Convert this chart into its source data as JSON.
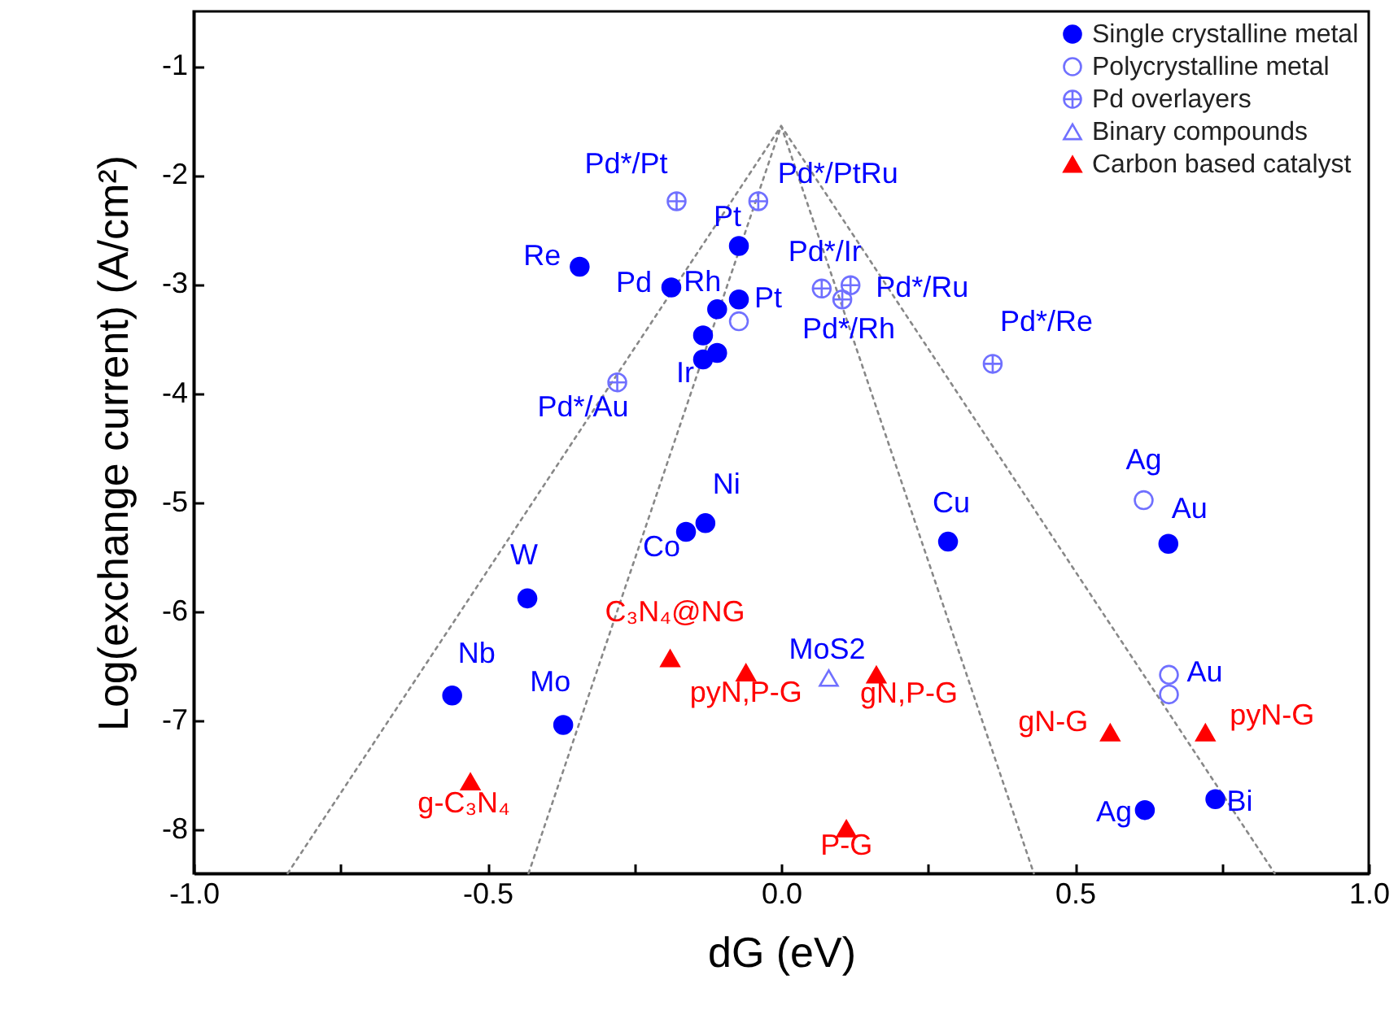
{
  "chart_data": {
    "type": "scatter",
    "xlabel": "dG (eV)",
    "ylabel": "Log(exchange current) (A/cm²)",
    "xlim": [
      -1.0,
      1.0
    ],
    "ylim": [
      -8.4,
      -0.5
    ],
    "xticks": [
      {
        "value": -1,
        "label": "-1.0"
      },
      {
        "value": -0.75,
        "label": null
      },
      {
        "value": -0.5,
        "label": "-0.5"
      },
      {
        "value": -0.25,
        "label": null
      },
      {
        "value": 0,
        "label": "0.0"
      },
      {
        "value": 0.25,
        "label": null
      },
      {
        "value": 0.5,
        "label": "0.5"
      },
      {
        "value": 0.75,
        "label": null
      },
      {
        "value": 1,
        "label": "1.0"
      }
    ],
    "yticks": [
      -1,
      -2,
      -3,
      -4,
      -5,
      -6,
      -7,
      -8
    ],
    "grid": false,
    "legend": "top right",
    "series": [
      {
        "name": "Single crystalline metal",
        "marker": "circle",
        "color": "#0000ff",
        "x": [
          -0.072,
          -0.343,
          -0.187,
          -0.109,
          -0.072,
          -0.133,
          -0.109,
          -0.133,
          -0.129,
          -0.162,
          -0.432,
          -0.56,
          -0.371,
          0.284,
          0.659,
          0.739,
          0.619
        ],
        "values": [
          -2.65,
          -2.84,
          -3.03,
          -3.23,
          -3.14,
          -3.47,
          -3.63,
          -3.69,
          -5.19,
          -5.27,
          -5.88,
          -6.77,
          -7.04,
          -5.36,
          -5.38,
          -7.72,
          -7.82
        ],
        "value_labels": [
          "Pt",
          "Re",
          "Pd",
          "Rh",
          "Pt",
          null,
          null,
          "Ir",
          "Ni",
          "Co",
          "W",
          "Nb",
          "Mo",
          "Cu",
          "Au",
          "Bi",
          "Ag"
        ]
      },
      {
        "name": "Polycrystalline metal",
        "marker": "circle",
        "color": "#7070ff",
        "x": [
          -0.072,
          0.617,
          0.66,
          0.66
        ],
        "values": [
          -3.34,
          -4.98,
          -6.58,
          -6.76
        ],
        "value_labels": [
          null,
          "Ag",
          "Au",
          null
        ]
      },
      {
        "name": "Pd overlayers",
        "marker": "cross",
        "color": "#7070ff",
        "x": [
          -0.178,
          -0.039,
          0.069,
          0.118,
          0.104,
          0.36,
          -0.279
        ],
        "values": [
          -2.24,
          -2.24,
          -3.04,
          -3.01,
          -3.14,
          -3.73,
          -3.9
        ],
        "value_labels": [
          "Pd*/Pt",
          "Pd*/PtRu",
          "Pd*/Ir",
          "Pd*/Ru",
          "Pd*/Rh",
          "Pd*/Re",
          "Pd*/Au"
        ]
      },
      {
        "name": "Binary compounds",
        "marker": "triangle",
        "color": "#7070ff",
        "x": [
          0.081
        ],
        "values": [
          -6.61
        ],
        "value_labels": [
          "MoS2"
        ]
      },
      {
        "name": "Carbon based catalyst",
        "marker": "triangle",
        "color": "#ff0000",
        "x": [
          -0.189,
          -0.06,
          0.162,
          0.56,
          0.722,
          -0.529,
          0.111
        ],
        "values": [
          -6.43,
          -6.56,
          -6.58,
          -7.11,
          -7.11,
          -7.56,
          -7.99
        ],
        "value_labels": [
          "C₃N₄@NG",
          "pyN,P-G",
          "gN,P-G",
          "gN-G",
          "pyN-G",
          "g-C₃N₄",
          "P-G"
        ]
      },
      {
        "type": "line",
        "marker": "none",
        "line_style": "dotted",
        "color": "#888888",
        "x": [
          -0.84,
          0,
          0.84
        ],
        "values": [
          -8.4,
          -1.55,
          -8.4
        ]
      },
      {
        "type": "line",
        "marker": "none",
        "line_style": "dotted",
        "color": "#888888",
        "x": [
          -0.43,
          0,
          0.43
        ],
        "values": [
          -8.4,
          -1.55,
          -8.4
        ]
      }
    ]
  }
}
